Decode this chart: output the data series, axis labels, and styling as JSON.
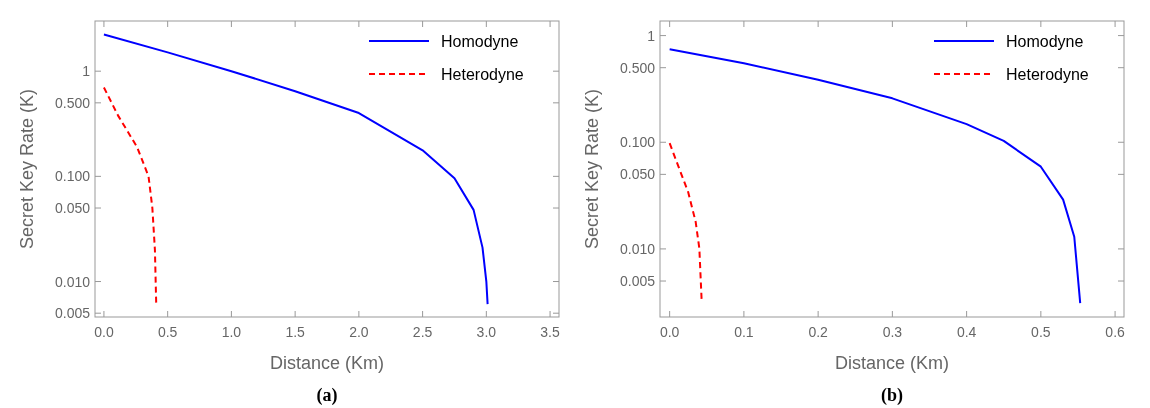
{
  "chart_data": [
    {
      "type": "line",
      "xlabel": "Distance (Km)",
      "ylabel": "Secret Key Rate (K)",
      "annotations": [
        "(a)"
      ],
      "log": "y",
      "grid": false,
      "legend": "top right",
      "xlim": [
        -0.07,
        3.57
      ],
      "ylim": [
        0.0046,
        3.0
      ],
      "xticks": [
        {
          "value": 0,
          "label": "0.0"
        },
        {
          "value": 0.5,
          "label": "0.5"
        },
        {
          "value": 1,
          "label": "1.0"
        },
        {
          "value": 1.5,
          "label": "1.5"
        },
        {
          "value": 2,
          "label": "2.0"
        },
        {
          "value": 2.5,
          "label": "2.5"
        },
        {
          "value": 3,
          "label": "3.0"
        },
        {
          "value": 3.5,
          "label": "3.5"
        }
      ],
      "yticks": [
        {
          "value": 0.005,
          "label": "0.005"
        },
        {
          "value": 0.01,
          "label": "0.010"
        },
        {
          "value": 0.05,
          "label": "0.050"
        },
        {
          "value": 0.1,
          "label": "0.100"
        },
        {
          "value": 0.5,
          "label": "0.500"
        },
        1
      ],
      "series": [
        {
          "name": "Homodyne",
          "color": "#0000ff",
          "line_style": "solid",
          "x": [
            0,
            0.5,
            1,
            1.5,
            2,
            2.5,
            2.75,
            2.9,
            2.97,
            3,
            3.01
          ],
          "values": [
            2.23,
            1.51,
            1.0,
            0.645,
            0.4,
            0.177,
            0.096,
            0.048,
            0.021,
            0.01,
            0.0061
          ]
        },
        {
          "name": "Heterodyne",
          "color": "#ff0000",
          "line_style": "dashed",
          "x": [
            0,
            0.11,
            0.26,
            0.35,
            0.38,
            0.4,
            0.41
          ],
          "values": [
            0.7,
            0.38,
            0.19,
            0.1,
            0.05,
            0.02,
            0.0063
          ]
        }
      ]
    },
    {
      "type": "line",
      "xlabel": "Distance (Km)",
      "ylabel": "Secret Key Rate (K)",
      "annotations": [
        "(b)"
      ],
      "log": "y",
      "grid": false,
      "legend": "top right",
      "xlim": [
        -0.013,
        0.612
      ],
      "ylim": [
        0.0023,
        1.37
      ],
      "xticks": [
        {
          "value": 0,
          "label": "0.0"
        },
        {
          "value": 0.1,
          "label": "0.1"
        },
        {
          "value": 0.2,
          "label": "0.2"
        },
        {
          "value": 0.3,
          "label": "0.3"
        },
        {
          "value": 0.4,
          "label": "0.4"
        },
        {
          "value": 0.5,
          "label": "0.5"
        },
        {
          "value": 0.6,
          "label": "0.6"
        }
      ],
      "yticks": [
        {
          "value": 0.005,
          "label": "0.005"
        },
        {
          "value": 0.01,
          "label": "0.010"
        },
        {
          "value": 0.05,
          "label": "0.050"
        },
        {
          "value": 0.1,
          "label": "0.100"
        },
        {
          "value": 0.5,
          "label": "0.500"
        },
        1
      ],
      "series": [
        {
          "name": "Homodyne",
          "color": "#0000ff",
          "line_style": "solid",
          "x": [
            0,
            0.1,
            0.2,
            0.3,
            0.4,
            0.45,
            0.5,
            0.53,
            0.545,
            0.553
          ],
          "values": [
            0.745,
            0.55,
            0.385,
            0.258,
            0.148,
            0.103,
            0.059,
            0.029,
            0.013,
            0.0031
          ]
        },
        {
          "name": "Heterodyne",
          "color": "#ff0000",
          "line_style": "dashed",
          "x": [
            0,
            0.01,
            0.025,
            0.035,
            0.04,
            0.043
          ],
          "values": [
            0.098,
            0.064,
            0.034,
            0.018,
            0.0101,
            0.0034
          ]
        }
      ]
    }
  ]
}
